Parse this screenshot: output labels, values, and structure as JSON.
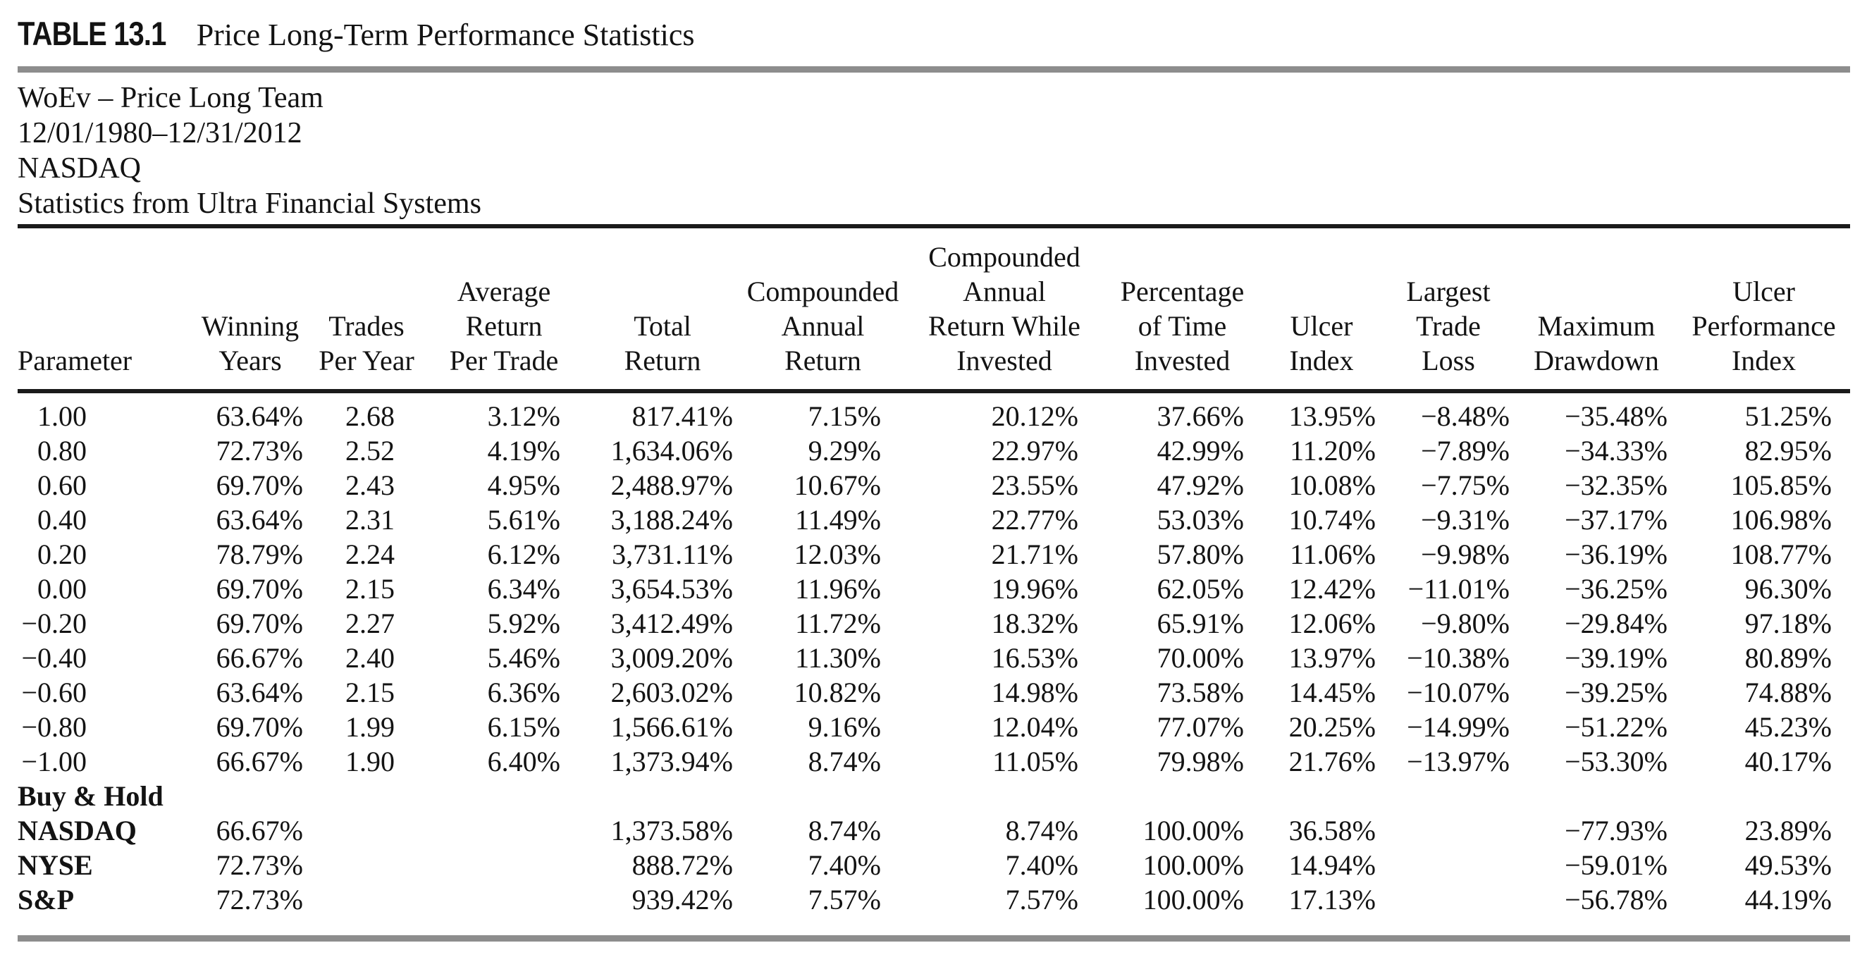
{
  "caption": {
    "label": "TABLE 13.1",
    "title": "Price Long-Term Performance Statistics"
  },
  "meta_lines": [
    "WoEv – Price Long Team",
    "12/01/1980–12/31/2012",
    "NASDAQ",
    "Statistics from Ultra Financial Systems"
  ],
  "columns": [
    "Parameter",
    "Winning\nYears",
    "Trades\nPer Year",
    "Average\nReturn\nPer Trade",
    "Total\nReturn",
    "Compounded\nAnnual\nReturn",
    "Compounded\nAnnual\nReturn While\nInvested",
    "Percentage\nof Time\nInvested",
    "Ulcer\nIndex",
    "Largest\nTrade\nLoss",
    "Maximum\nDrawdown",
    "Ulcer\nPerformance\nIndex"
  ],
  "rows": [
    {
      "label": "1.00",
      "bold": false,
      "section": false,
      "values": [
        "63.64%",
        "2.68",
        "3.12%",
        "817.41%",
        "7.15%",
        "20.12%",
        "37.66%",
        "13.95%",
        "−8.48%",
        "−35.48%",
        "51.25%"
      ]
    },
    {
      "label": "0.80",
      "bold": false,
      "section": false,
      "values": [
        "72.73%",
        "2.52",
        "4.19%",
        "1,634.06%",
        "9.29%",
        "22.97%",
        "42.99%",
        "11.20%",
        "−7.89%",
        "−34.33%",
        "82.95%"
      ]
    },
    {
      "label": "0.60",
      "bold": false,
      "section": false,
      "values": [
        "69.70%",
        "2.43",
        "4.95%",
        "2,488.97%",
        "10.67%",
        "23.55%",
        "47.92%",
        "10.08%",
        "−7.75%",
        "−32.35%",
        "105.85%"
      ]
    },
    {
      "label": "0.40",
      "bold": false,
      "section": false,
      "values": [
        "63.64%",
        "2.31",
        "5.61%",
        "3,188.24%",
        "11.49%",
        "22.77%",
        "53.03%",
        "10.74%",
        "−9.31%",
        "−37.17%",
        "106.98%"
      ]
    },
    {
      "label": "0.20",
      "bold": false,
      "section": false,
      "values": [
        "78.79%",
        "2.24",
        "6.12%",
        "3,731.11%",
        "12.03%",
        "21.71%",
        "57.80%",
        "11.06%",
        "−9.98%",
        "−36.19%",
        "108.77%"
      ]
    },
    {
      "label": "0.00",
      "bold": false,
      "section": false,
      "values": [
        "69.70%",
        "2.15",
        "6.34%",
        "3,654.53%",
        "11.96%",
        "19.96%",
        "62.05%",
        "12.42%",
        "−11.01%",
        "−36.25%",
        "96.30%"
      ]
    },
    {
      "label": "−0.20",
      "bold": false,
      "section": false,
      "values": [
        "69.70%",
        "2.27",
        "5.92%",
        "3,412.49%",
        "11.72%",
        "18.32%",
        "65.91%",
        "12.06%",
        "−9.80%",
        "−29.84%",
        "97.18%"
      ]
    },
    {
      "label": "−0.40",
      "bold": false,
      "section": false,
      "values": [
        "66.67%",
        "2.40",
        "5.46%",
        "3,009.20%",
        "11.30%",
        "16.53%",
        "70.00%",
        "13.97%",
        "−10.38%",
        "−39.19%",
        "80.89%"
      ]
    },
    {
      "label": "−0.60",
      "bold": false,
      "section": false,
      "values": [
        "63.64%",
        "2.15",
        "6.36%",
        "2,603.02%",
        "10.82%",
        "14.98%",
        "73.58%",
        "14.45%",
        "−10.07%",
        "−39.25%",
        "74.88%"
      ]
    },
    {
      "label": "−0.80",
      "bold": false,
      "section": false,
      "values": [
        "69.70%",
        "1.99",
        "6.15%",
        "1,566.61%",
        "9.16%",
        "12.04%",
        "77.07%",
        "20.25%",
        "−14.99%",
        "−51.22%",
        "45.23%"
      ]
    },
    {
      "label": "−1.00",
      "bold": false,
      "section": false,
      "values": [
        "66.67%",
        "1.90",
        "6.40%",
        "1,373.94%",
        "8.74%",
        "11.05%",
        "79.98%",
        "21.76%",
        "−13.97%",
        "−53.30%",
        "40.17%"
      ]
    },
    {
      "label": "Buy & Hold",
      "bold": true,
      "section": true,
      "values": []
    },
    {
      "label": "NASDAQ",
      "bold": true,
      "section": false,
      "values": [
        "66.67%",
        "",
        "",
        "1,373.58%",
        "8.74%",
        "8.74%",
        "100.00%",
        "36.58%",
        "",
        "−77.93%",
        "23.89%"
      ]
    },
    {
      "label": "NYSE",
      "bold": true,
      "section": false,
      "values": [
        "72.73%",
        "",
        "",
        "888.72%",
        "7.40%",
        "7.40%",
        "100.00%",
        "14.94%",
        "",
        "−59.01%",
        "49.53%"
      ]
    },
    {
      "label": "S&P",
      "bold": true,
      "section": false,
      "values": [
        "72.73%",
        "",
        "",
        "939.42%",
        "7.57%",
        "7.57%",
        "100.00%",
        "17.13%",
        "",
        "−56.78%",
        "44.19%"
      ]
    }
  ],
  "colors": {
    "text": "#131313",
    "rule_gray": "#8d8d8d",
    "rule_black": "#1a1a1a",
    "background": "#ffffff"
  }
}
